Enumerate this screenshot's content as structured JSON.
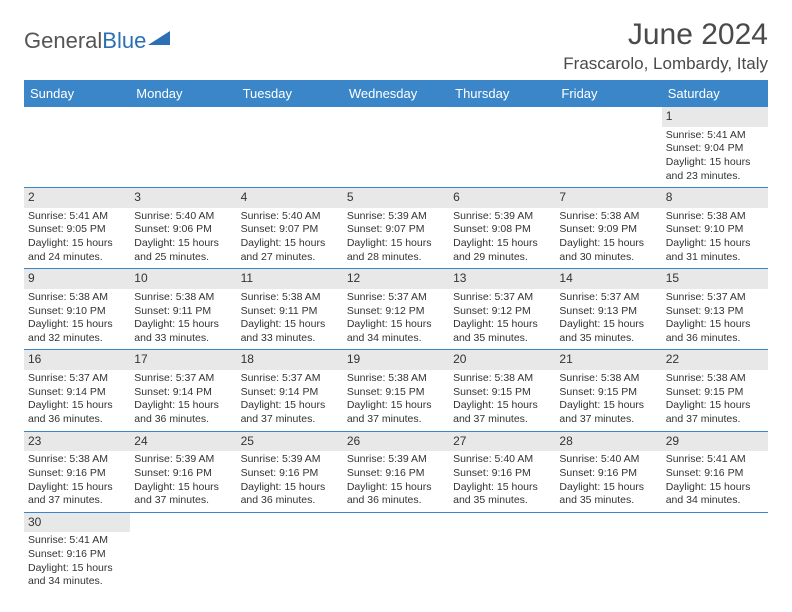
{
  "logo": {
    "part1": "General",
    "part2": "Blue"
  },
  "title": "June 2024",
  "location": "Frascarolo, Lombardy, Italy",
  "colors": {
    "header_bg": "#3a86c8",
    "header_text": "#ffffff",
    "daynum_bg": "#e8e8e8",
    "body_text": "#333333",
    "logo_blue": "#2b6fb5",
    "logo_gray": "#555555",
    "border": "#3a86c8"
  },
  "day_names": [
    "Sunday",
    "Monday",
    "Tuesday",
    "Wednesday",
    "Thursday",
    "Friday",
    "Saturday"
  ],
  "weeks": [
    [
      {
        "n": "",
        "sr": "",
        "ss": "",
        "dl": ""
      },
      {
        "n": "",
        "sr": "",
        "ss": "",
        "dl": ""
      },
      {
        "n": "",
        "sr": "",
        "ss": "",
        "dl": ""
      },
      {
        "n": "",
        "sr": "",
        "ss": "",
        "dl": ""
      },
      {
        "n": "",
        "sr": "",
        "ss": "",
        "dl": ""
      },
      {
        "n": "",
        "sr": "",
        "ss": "",
        "dl": ""
      },
      {
        "n": "1",
        "sr": "Sunrise: 5:41 AM",
        "ss": "Sunset: 9:04 PM",
        "dl": "Daylight: 15 hours and 23 minutes."
      }
    ],
    [
      {
        "n": "2",
        "sr": "Sunrise: 5:41 AM",
        "ss": "Sunset: 9:05 PM",
        "dl": "Daylight: 15 hours and 24 minutes."
      },
      {
        "n": "3",
        "sr": "Sunrise: 5:40 AM",
        "ss": "Sunset: 9:06 PM",
        "dl": "Daylight: 15 hours and 25 minutes."
      },
      {
        "n": "4",
        "sr": "Sunrise: 5:40 AM",
        "ss": "Sunset: 9:07 PM",
        "dl": "Daylight: 15 hours and 27 minutes."
      },
      {
        "n": "5",
        "sr": "Sunrise: 5:39 AM",
        "ss": "Sunset: 9:07 PM",
        "dl": "Daylight: 15 hours and 28 minutes."
      },
      {
        "n": "6",
        "sr": "Sunrise: 5:39 AM",
        "ss": "Sunset: 9:08 PM",
        "dl": "Daylight: 15 hours and 29 minutes."
      },
      {
        "n": "7",
        "sr": "Sunrise: 5:38 AM",
        "ss": "Sunset: 9:09 PM",
        "dl": "Daylight: 15 hours and 30 minutes."
      },
      {
        "n": "8",
        "sr": "Sunrise: 5:38 AM",
        "ss": "Sunset: 9:10 PM",
        "dl": "Daylight: 15 hours and 31 minutes."
      }
    ],
    [
      {
        "n": "9",
        "sr": "Sunrise: 5:38 AM",
        "ss": "Sunset: 9:10 PM",
        "dl": "Daylight: 15 hours and 32 minutes."
      },
      {
        "n": "10",
        "sr": "Sunrise: 5:38 AM",
        "ss": "Sunset: 9:11 PM",
        "dl": "Daylight: 15 hours and 33 minutes."
      },
      {
        "n": "11",
        "sr": "Sunrise: 5:38 AM",
        "ss": "Sunset: 9:11 PM",
        "dl": "Daylight: 15 hours and 33 minutes."
      },
      {
        "n": "12",
        "sr": "Sunrise: 5:37 AM",
        "ss": "Sunset: 9:12 PM",
        "dl": "Daylight: 15 hours and 34 minutes."
      },
      {
        "n": "13",
        "sr": "Sunrise: 5:37 AM",
        "ss": "Sunset: 9:12 PM",
        "dl": "Daylight: 15 hours and 35 minutes."
      },
      {
        "n": "14",
        "sr": "Sunrise: 5:37 AM",
        "ss": "Sunset: 9:13 PM",
        "dl": "Daylight: 15 hours and 35 minutes."
      },
      {
        "n": "15",
        "sr": "Sunrise: 5:37 AM",
        "ss": "Sunset: 9:13 PM",
        "dl": "Daylight: 15 hours and 36 minutes."
      }
    ],
    [
      {
        "n": "16",
        "sr": "Sunrise: 5:37 AM",
        "ss": "Sunset: 9:14 PM",
        "dl": "Daylight: 15 hours and 36 minutes."
      },
      {
        "n": "17",
        "sr": "Sunrise: 5:37 AM",
        "ss": "Sunset: 9:14 PM",
        "dl": "Daylight: 15 hours and 36 minutes."
      },
      {
        "n": "18",
        "sr": "Sunrise: 5:37 AM",
        "ss": "Sunset: 9:14 PM",
        "dl": "Daylight: 15 hours and 37 minutes."
      },
      {
        "n": "19",
        "sr": "Sunrise: 5:38 AM",
        "ss": "Sunset: 9:15 PM",
        "dl": "Daylight: 15 hours and 37 minutes."
      },
      {
        "n": "20",
        "sr": "Sunrise: 5:38 AM",
        "ss": "Sunset: 9:15 PM",
        "dl": "Daylight: 15 hours and 37 minutes."
      },
      {
        "n": "21",
        "sr": "Sunrise: 5:38 AM",
        "ss": "Sunset: 9:15 PM",
        "dl": "Daylight: 15 hours and 37 minutes."
      },
      {
        "n": "22",
        "sr": "Sunrise: 5:38 AM",
        "ss": "Sunset: 9:15 PM",
        "dl": "Daylight: 15 hours and 37 minutes."
      }
    ],
    [
      {
        "n": "23",
        "sr": "Sunrise: 5:38 AM",
        "ss": "Sunset: 9:16 PM",
        "dl": "Daylight: 15 hours and 37 minutes."
      },
      {
        "n": "24",
        "sr": "Sunrise: 5:39 AM",
        "ss": "Sunset: 9:16 PM",
        "dl": "Daylight: 15 hours and 37 minutes."
      },
      {
        "n": "25",
        "sr": "Sunrise: 5:39 AM",
        "ss": "Sunset: 9:16 PM",
        "dl": "Daylight: 15 hours and 36 minutes."
      },
      {
        "n": "26",
        "sr": "Sunrise: 5:39 AM",
        "ss": "Sunset: 9:16 PM",
        "dl": "Daylight: 15 hours and 36 minutes."
      },
      {
        "n": "27",
        "sr": "Sunrise: 5:40 AM",
        "ss": "Sunset: 9:16 PM",
        "dl": "Daylight: 15 hours and 35 minutes."
      },
      {
        "n": "28",
        "sr": "Sunrise: 5:40 AM",
        "ss": "Sunset: 9:16 PM",
        "dl": "Daylight: 15 hours and 35 minutes."
      },
      {
        "n": "29",
        "sr": "Sunrise: 5:41 AM",
        "ss": "Sunset: 9:16 PM",
        "dl": "Daylight: 15 hours and 34 minutes."
      }
    ],
    [
      {
        "n": "30",
        "sr": "Sunrise: 5:41 AM",
        "ss": "Sunset: 9:16 PM",
        "dl": "Daylight: 15 hours and 34 minutes."
      },
      {
        "n": "",
        "sr": "",
        "ss": "",
        "dl": ""
      },
      {
        "n": "",
        "sr": "",
        "ss": "",
        "dl": ""
      },
      {
        "n": "",
        "sr": "",
        "ss": "",
        "dl": ""
      },
      {
        "n": "",
        "sr": "",
        "ss": "",
        "dl": ""
      },
      {
        "n": "",
        "sr": "",
        "ss": "",
        "dl": ""
      },
      {
        "n": "",
        "sr": "",
        "ss": "",
        "dl": ""
      }
    ]
  ]
}
